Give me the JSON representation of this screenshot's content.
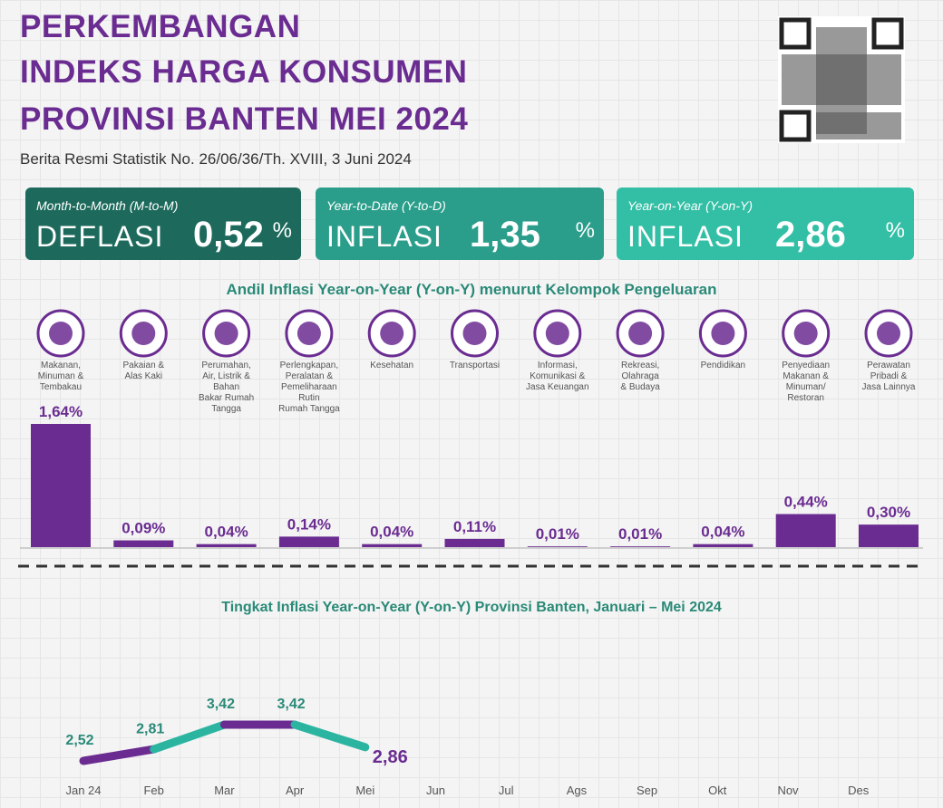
{
  "header": {
    "title_lines": [
      "PERKEMBANGAN",
      "INDEKS HARGA KONSUMEN",
      "PROVINSI BANTEN MEI 2024"
    ],
    "subtitle": "Berita Resmi Statistik No. 26/06/36/Th. XVIII, 3 Juni 2024"
  },
  "cards": [
    {
      "period": "Month-to-Month (M-to-M)",
      "label": "DEFLASI",
      "value": "0,52",
      "unit": "%",
      "color": "#1d6a5c"
    },
    {
      "period": "Year-to-Date (Y-to-D)",
      "label": "INFLASI",
      "value": "1,35",
      "unit": "%",
      "color": "#2a9e8b"
    },
    {
      "period": "Year-on-Year (Y-on-Y)",
      "label": "INFLASI",
      "value": "2,86",
      "unit": "%",
      "color": "#33bfa5"
    }
  ],
  "chart_data": [
    {
      "type": "bar",
      "title": "Andil Inflasi Year-on-Year (Y-on-Y) menurut Kelompok Pengeluaran",
      "categories": [
        "Makanan,\nMinuman &\nTembakau",
        "Pakaian &\nAlas Kaki",
        "Perumahan,\nAir, Listrik &\nBahan\nBakar Rumah\nTangga",
        "Perlengkapan,\nPeralatan &\nPemeliharaan\nRutin\nRumah Tangga",
        "Kesehatan",
        "Transportasi",
        "Informasi,\nKomunikasi &\nJasa Keuangan",
        "Rekreasi,\nOlahraga\n& Budaya",
        "Pendidikan",
        "Penyediaan\nMakanan &\nMinuman/\nRestoran",
        "Perawatan\nPribadi &\nJasa Lainnya"
      ],
      "values": [
        1.64,
        0.09,
        0.04,
        0.14,
        0.04,
        0.11,
        0.01,
        0.01,
        0.04,
        0.44,
        0.3
      ],
      "value_labels": [
        "1,64%",
        "0,09%",
        "0,04%",
        "0,14%",
        "0,04%",
        "0,11%",
        "0,01%",
        "0,01%",
        "0,04%",
        "0,44%",
        "0,30%"
      ],
      "color": "#6a2c91"
    },
    {
      "type": "line",
      "title": "Tingkat Inflasi Year-on-Year (Y-on-Y) Provinsi Banten, Januari – Mei  2024",
      "categories": [
        "Jan 24",
        "Feb",
        "Mar",
        "Apr",
        "Mei",
        "Jun",
        "Jul",
        "Ags",
        "Sep",
        "Okt",
        "Nov",
        "Des"
      ],
      "values": [
        2.52,
        2.81,
        3.42,
        3.42,
        2.86,
        null,
        null,
        null,
        null,
        null,
        null,
        null
      ],
      "value_labels": [
        "2,52",
        "2,81",
        "3,42",
        "3,42",
        "2,86",
        null,
        null,
        null,
        null,
        null,
        null,
        null
      ],
      "colors": [
        "#6a2c91",
        "#2bb5a0"
      ]
    }
  ]
}
